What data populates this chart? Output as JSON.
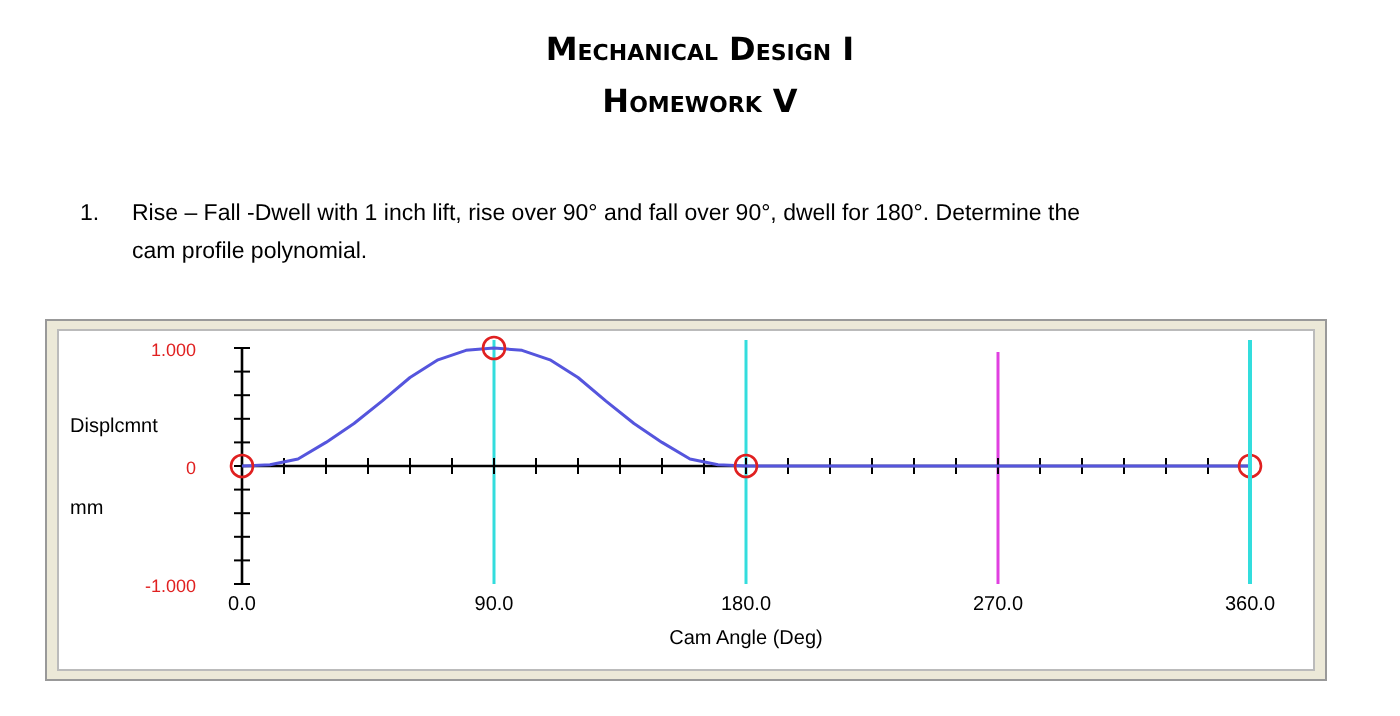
{
  "chart_data": {
    "type": "line",
    "title": "Mechanical Design I",
    "subtitle": "Homework V",
    "xlabel": "Cam Angle (Deg)",
    "ylabel": "Displcmnt\nmm",
    "annotations": [
      "1. Rise – Fall -Dwell with 1 inch lift, rise over 90° and fall over 90°, dwell for 180°. Determine the cam profile polynomial."
    ],
    "xlim": [
      0,
      360
    ],
    "ylim": [
      -1,
      1
    ],
    "xticks": [
      {
        "value": 0,
        "label": "0.0"
      },
      {
        "value": 15,
        "label": null
      },
      {
        "value": 30,
        "label": null
      },
      {
        "value": 45,
        "label": null
      },
      {
        "value": 60,
        "label": null
      },
      {
        "value": 75,
        "label": null
      },
      {
        "value": 90,
        "label": "90.0"
      },
      {
        "value": 105,
        "label": null
      },
      {
        "value": 120,
        "label": null
      },
      {
        "value": 135,
        "label": null
      },
      {
        "value": 150,
        "label": null
      },
      {
        "value": 165,
        "label": null
      },
      {
        "value": 180,
        "label": "180.0"
      },
      {
        "value": 195,
        "label": null
      },
      {
        "value": 210,
        "label": null
      },
      {
        "value": 225,
        "label": null
      },
      {
        "value": 240,
        "label": null
      },
      {
        "value": 255,
        "label": null
      },
      {
        "value": 270,
        "label": "270.0"
      },
      {
        "value": 285,
        "label": null
      },
      {
        "value": 300,
        "label": null
      },
      {
        "value": 315,
        "label": null
      },
      {
        "value": 330,
        "label": null
      },
      {
        "value": 345,
        "label": null
      },
      {
        "value": 360,
        "label": "360.0"
      }
    ],
    "yticks": [
      {
        "value": -1,
        "label": "-1.000"
      },
      {
        "value": -0.8,
        "label": null
      },
      {
        "value": -0.6,
        "label": null
      },
      {
        "value": -0.4,
        "label": null
      },
      {
        "value": -0.2,
        "label": null
      },
      0,
      {
        "value": 0.2,
        "label": null
      },
      {
        "value": 0.4,
        "label": null
      },
      {
        "value": 0.6,
        "label": null
      },
      {
        "value": 0.8,
        "label": null
      },
      {
        "value": 1,
        "label": "1.000"
      }
    ],
    "series": [
      {
        "color": "#5555dd",
        "x": [
          0,
          10,
          20,
          30,
          40,
          50,
          60,
          70,
          80,
          90,
          100,
          110,
          120,
          130,
          140,
          150,
          160,
          170,
          180,
          360
        ],
        "values": [
          0,
          0.01,
          0.06,
          0.2,
          0.36,
          0.55,
          0.75,
          0.9,
          0.98,
          1,
          0.98,
          0.9,
          0.75,
          0.55,
          0.36,
          0.2,
          0.06,
          0.01,
          0,
          0
        ]
      },
      {
        "type": "scatter",
        "color": "#e02020",
        "marker": "circle",
        "x": [
          0,
          90,
          180,
          360
        ],
        "values": [
          0,
          1,
          0,
          0
        ]
      }
    ],
    "ref_lines": [
      {
        "axis": "x",
        "value": 90,
        "color": "#33dddd"
      },
      {
        "axis": "x",
        "value": 180,
        "color": "#33dddd"
      },
      {
        "axis": "x",
        "value": 270,
        "color": "#e040e0"
      },
      {
        "axis": "x",
        "value": 360,
        "color": "#33dddd"
      }
    ],
    "grid": false
  }
}
